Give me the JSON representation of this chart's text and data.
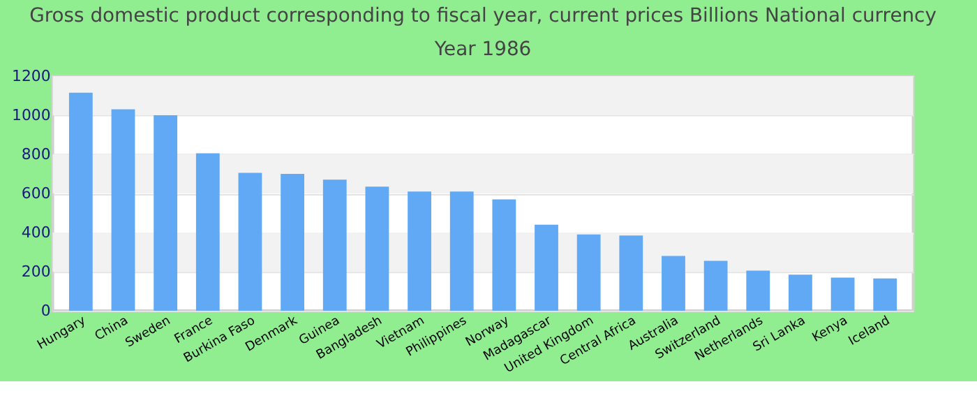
{
  "chart_data": {
    "type": "bar",
    "title": [
      "Gross domestic product corresponding to fiscal year, current prices Billions National currency",
      "Year 1986"
    ],
    "categories": [
      "Hungary",
      "China",
      "Sweden",
      "France",
      "Burkina Faso",
      "Denmark",
      "Guinea",
      "Bangladesh",
      "Vietnam",
      "Philippines",
      "Norway",
      "Madagascar",
      "United Kingdom",
      "Central Africa",
      "Australia",
      "Switzerland",
      "Netherlands",
      "Sri Lanka",
      "Kenya",
      "Iceland"
    ],
    "values": [
      1115,
      1030,
      1000,
      805,
      705,
      700,
      670,
      635,
      610,
      610,
      570,
      440,
      390,
      385,
      280,
      255,
      205,
      185,
      170,
      165
    ],
    "color": "#62a9f5",
    "ylim": [
      0,
      1200
    ],
    "yticks": [
      0,
      200,
      400,
      600,
      800,
      1000,
      1200
    ],
    "grid": "y"
  }
}
